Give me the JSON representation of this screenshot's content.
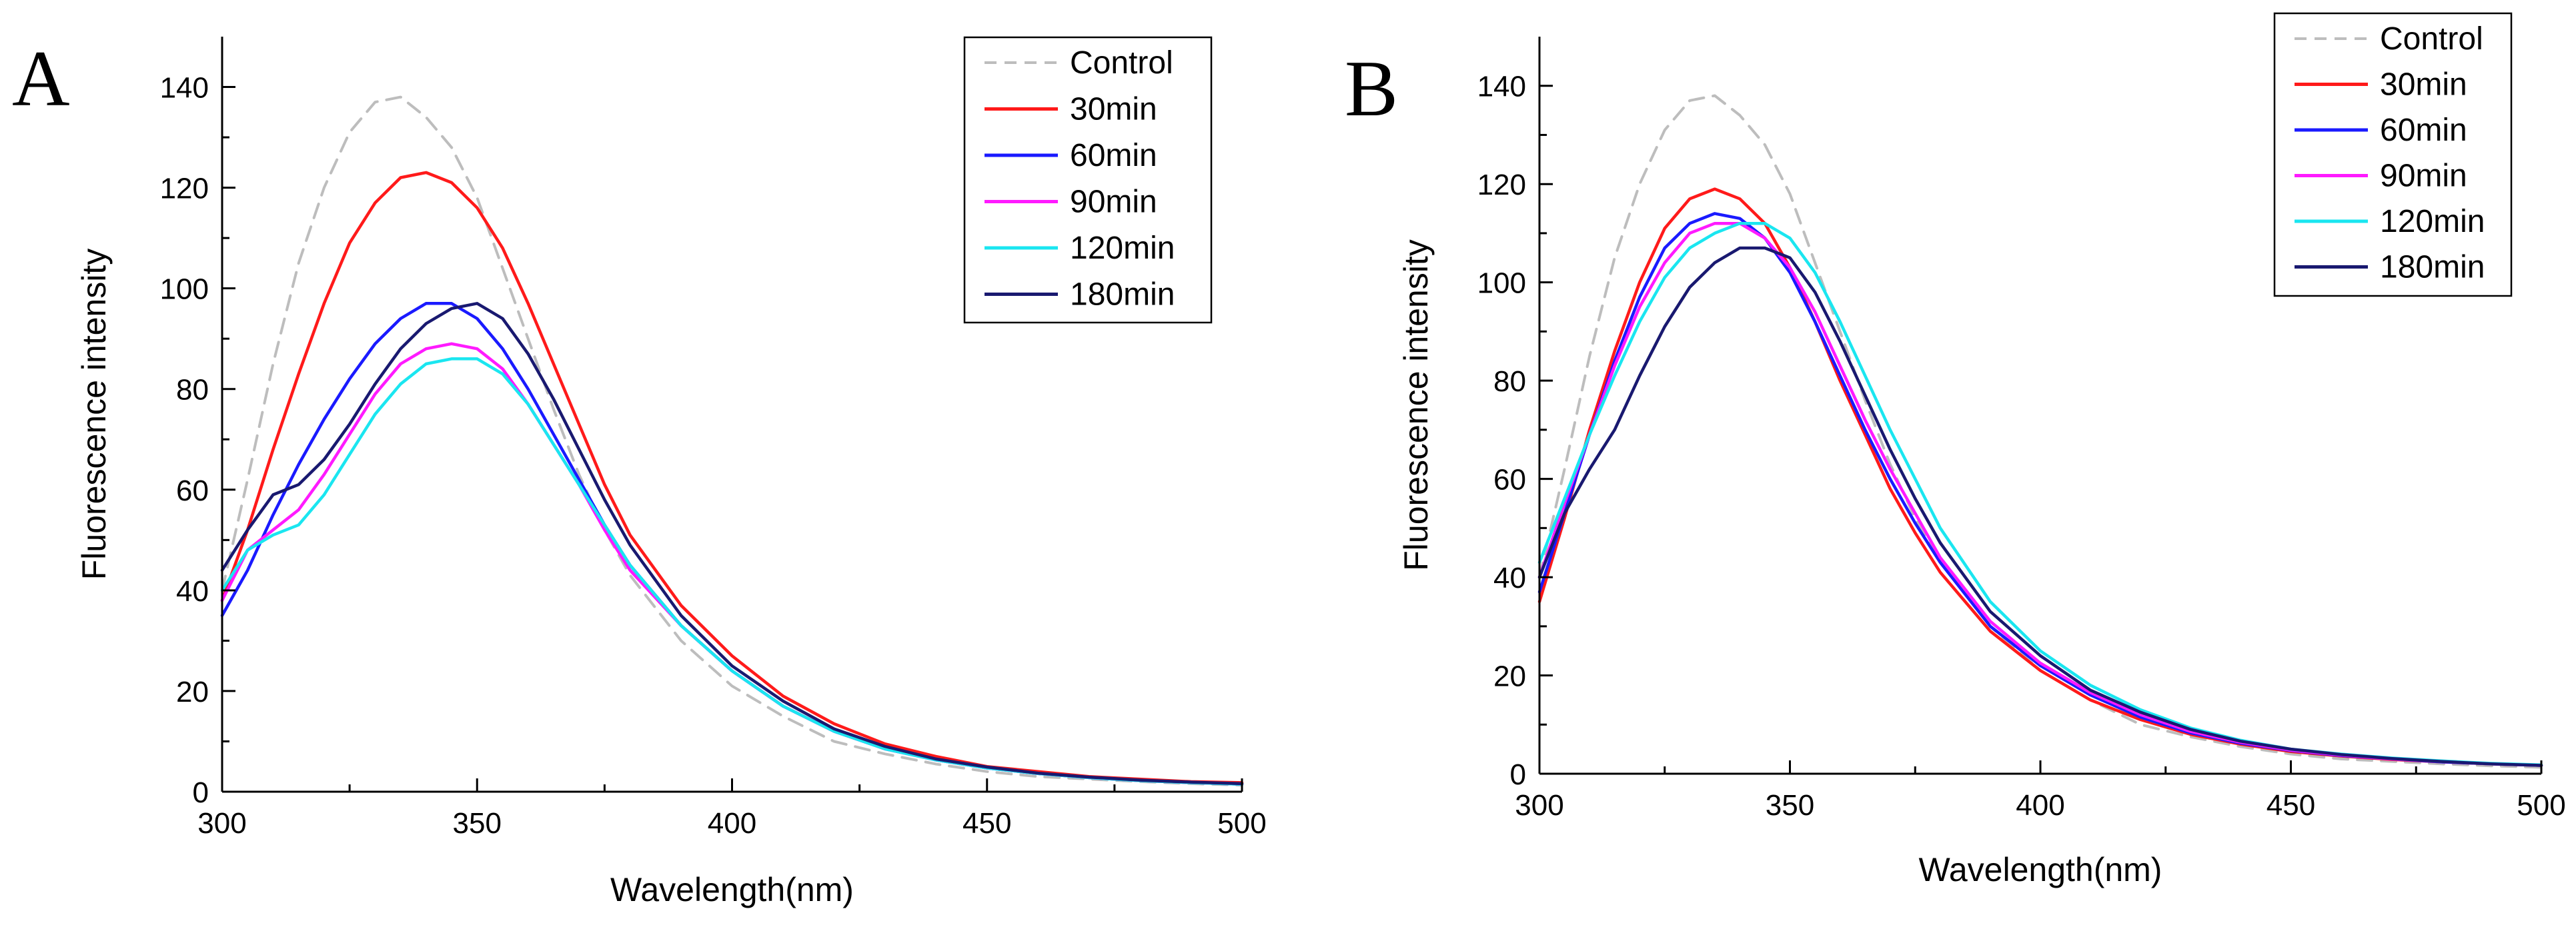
{
  "chart_data": [
    {
      "type": "line",
      "panel_label": "A",
      "title": "",
      "xlabel": "Wavelength(nm)",
      "ylabel": "Fluorescence intensity",
      "xlim": [
        300,
        500
      ],
      "ylim": [
        0,
        150
      ],
      "xticks": [
        300,
        350,
        400,
        450,
        500
      ],
      "yticks": [
        0,
        20,
        40,
        60,
        80,
        100,
        120,
        140
      ],
      "legend_position": "top-right",
      "x": [
        300,
        305,
        310,
        315,
        320,
        325,
        330,
        335,
        340,
        345,
        350,
        355,
        360,
        365,
        370,
        375,
        380,
        390,
        400,
        410,
        420,
        430,
        440,
        450,
        460,
        470,
        480,
        490,
        500
      ],
      "series": [
        {
          "name": "Control",
          "color": "#bdbdbd",
          "dash": true,
          "values": [
            40,
            62,
            85,
            105,
            120,
            131,
            137,
            138,
            134,
            128,
            118,
            104,
            90,
            76,
            63,
            52,
            43,
            30,
            21,
            15,
            10,
            7.5,
            5.5,
            4,
            3,
            2.5,
            2,
            1.6,
            1.3
          ]
        },
        {
          "name": "30min",
          "color": "#ff1a1a",
          "dash": false,
          "values": [
            38,
            52,
            68,
            83,
            97,
            109,
            117,
            122,
            123,
            121,
            116,
            108,
            97,
            85,
            73,
            61,
            51,
            37,
            27,
            19,
            13.5,
            9.5,
            7,
            5,
            4,
            3,
            2.5,
            2,
            1.8
          ]
        },
        {
          "name": "60min",
          "color": "#1a1aff",
          "dash": false,
          "values": [
            35,
            44,
            55,
            65,
            74,
            82,
            89,
            94,
            97,
            97,
            94,
            88,
            80,
            71,
            62,
            53,
            45,
            33,
            24,
            17,
            12,
            8.5,
            6.3,
            4.7,
            3.6,
            2.8,
            2.2,
            1.8,
            1.5
          ]
        },
        {
          "name": "90min",
          "color": "#ff1aff",
          "dash": false,
          "values": [
            38,
            48,
            52,
            56,
            63,
            71,
            79,
            85,
            88,
            89,
            88,
            84,
            77,
            69,
            61,
            52,
            44,
            33,
            24,
            17,
            12,
            8.5,
            6.3,
            4.7,
            3.6,
            2.8,
            2.2,
            1.8,
            1.5
          ]
        },
        {
          "name": "120min",
          "color": "#1ae6f0",
          "dash": false,
          "values": [
            40,
            48,
            51,
            53,
            59,
            67,
            75,
            81,
            85,
            86,
            86,
            83,
            77,
            69,
            61,
            53,
            45,
            33,
            24,
            17,
            12,
            8.5,
            6.3,
            4.7,
            3.6,
            2.8,
            2.2,
            1.8,
            1.5
          ]
        },
        {
          "name": "180min",
          "color": "#191970",
          "dash": false,
          "values": [
            44,
            52,
            59,
            61,
            66,
            73,
            81,
            88,
            93,
            96,
            97,
            94,
            87,
            78,
            68,
            58,
            49,
            35,
            25,
            18,
            12.5,
            9,
            6.5,
            4.9,
            3.7,
            2.9,
            2.3,
            1.9,
            1.6
          ]
        }
      ]
    },
    {
      "type": "line",
      "panel_label": "B",
      "title": "",
      "xlabel": "Wavelength(nm)",
      "ylabel": "Fluorescence intensity",
      "xlim": [
        300,
        500
      ],
      "ylim": [
        0,
        150
      ],
      "xticks": [
        300,
        350,
        400,
        450,
        500
      ],
      "yticks": [
        0,
        20,
        40,
        60,
        80,
        100,
        120,
        140
      ],
      "legend_position": "top-right",
      "x": [
        300,
        305,
        310,
        315,
        320,
        325,
        330,
        335,
        340,
        345,
        350,
        355,
        360,
        365,
        370,
        375,
        380,
        390,
        400,
        410,
        420,
        430,
        440,
        450,
        460,
        470,
        480,
        490,
        500
      ],
      "series": [
        {
          "name": "Control",
          "color": "#bdbdbd",
          "dash": true,
          "values": [
            40,
            62,
            85,
            105,
            120,
            131,
            137,
            138,
            134,
            128,
            118,
            104,
            90,
            76,
            63,
            52,
            43,
            30,
            21,
            15,
            10,
            7.5,
            5.5,
            4,
            3,
            2.5,
            2,
            1.6,
            1.3
          ]
        },
        {
          "name": "30min",
          "color": "#ff1a1a",
          "dash": false,
          "values": [
            35,
            52,
            70,
            86,
            100,
            111,
            117,
            119,
            117,
            112,
            103,
            92,
            80,
            69,
            58,
            49,
            41,
            29,
            21,
            15,
            11,
            8,
            6,
            4.5,
            3.6,
            2.9,
            2.4,
            2,
            1.7
          ]
        },
        {
          "name": "60min",
          "color": "#1a1aff",
          "dash": false,
          "values": [
            37,
            53,
            69,
            84,
            97,
            107,
            112,
            114,
            113,
            109,
            102,
            92,
            81,
            70,
            60,
            51,
            43,
            30,
            22,
            16,
            11.5,
            8.3,
            6.2,
            4.7,
            3.7,
            3,
            2.4,
            2,
            1.7
          ]
        },
        {
          "name": "90min",
          "color": "#ff1aff",
          "dash": false,
          "values": [
            40,
            55,
            69,
            83,
            95,
            104,
            110,
            112,
            112,
            109,
            103,
            94,
            83,
            72,
            62,
            53,
            44,
            31,
            22.5,
            16.5,
            12,
            8.6,
            6.4,
            4.8,
            3.8,
            3,
            2.5,
            2,
            1.7
          ]
        },
        {
          "name": "120min",
          "color": "#1ae6f0",
          "dash": false,
          "values": [
            43,
            56,
            69,
            81,
            92,
            101,
            107,
            110,
            112,
            112,
            109,
            102,
            92,
            81,
            70,
            60,
            50,
            35,
            25,
            18,
            13,
            9.3,
            6.8,
            5,
            4,
            3.2,
            2.6,
            2.1,
            1.8
          ]
        },
        {
          "name": "180min",
          "color": "#191970",
          "dash": false,
          "values": [
            40,
            53,
            62,
            70,
            81,
            91,
            99,
            104,
            107,
            107,
            105,
            98,
            88,
            77,
            66,
            56,
            47,
            33,
            24,
            17,
            12.5,
            9,
            6.6,
            5,
            3.9,
            3.1,
            2.5,
            2,
            1.7
          ]
        }
      ]
    }
  ]
}
